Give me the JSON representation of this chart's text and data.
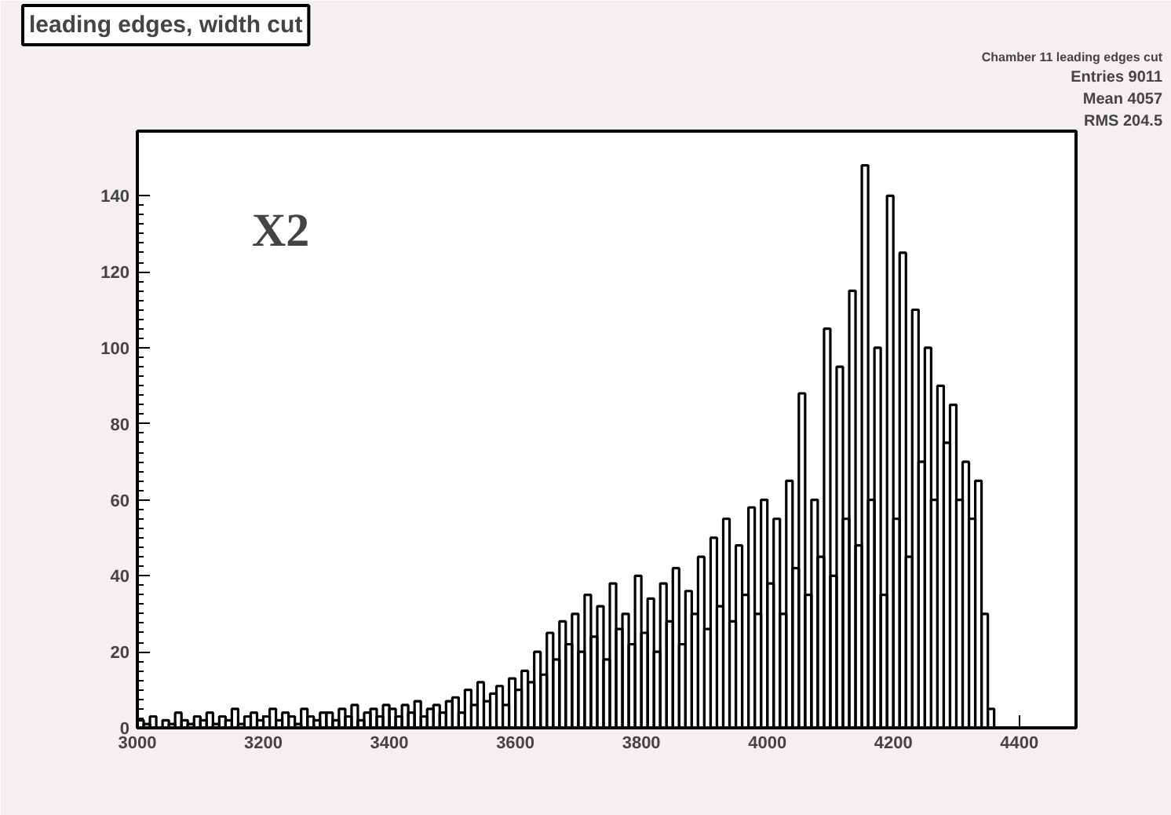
{
  "chart_data": {
    "type": "histogram",
    "title": "leading edges, width cut",
    "annotations": [
      "X2",
      "Chamber 11 leading edges cut",
      "Entries 9011",
      "Mean 4057",
      "RMS 204.5"
    ],
    "bins": [
      3000,
      3010,
      3020,
      3030,
      3040,
      3050,
      3060,
      3070,
      3080,
      3090,
      3100,
      3110,
      3120,
      3130,
      3140,
      3150,
      3160,
      3170,
      3180,
      3190,
      3200,
      3210,
      3220,
      3230,
      3240,
      3250,
      3260,
      3270,
      3280,
      3290,
      3300,
      3310,
      3320,
      3330,
      3340,
      3350,
      3360,
      3370,
      3380,
      3390,
      3400,
      3410,
      3420,
      3430,
      3440,
      3450,
      3460,
      3470,
      3480,
      3490,
      3500,
      3510,
      3520,
      3530,
      3540,
      3550,
      3560,
      3570,
      3580,
      3590,
      3600,
      3610,
      3620,
      3630,
      3640,
      3650,
      3660,
      3670,
      3680,
      3690,
      3700,
      3710,
      3720,
      3730,
      3740,
      3750,
      3760,
      3770,
      3780,
      3790,
      3800,
      3810,
      3820,
      3830,
      3840,
      3850,
      3860,
      3870,
      3880,
      3890,
      3900,
      3910,
      3920,
      3930,
      3940,
      3950,
      3960,
      3970,
      3980,
      3990,
      4000,
      4010,
      4020,
      4030,
      4040,
      4050,
      4060,
      4070,
      4080,
      4090,
      4100,
      4110,
      4120,
      4130,
      4140,
      4150,
      4160,
      4170,
      4180,
      4190,
      4200,
      4210,
      4220,
      4230,
      4240,
      4250,
      4260,
      4270,
      4280,
      4290,
      4300,
      4310,
      4320,
      4330,
      4340,
      4350,
      4360,
      4370,
      4380,
      4390,
      4400,
      4410,
      4420,
      4430,
      4440,
      4450,
      4460,
      4470,
      4480,
      4490
    ],
    "values": [
      2,
      1,
      3,
      0,
      2,
      1,
      4,
      2,
      1,
      3,
      2,
      4,
      1,
      3,
      2,
      5,
      1,
      3,
      4,
      2,
      3,
      5,
      2,
      4,
      3,
      1,
      5,
      3,
      2,
      4,
      4,
      2,
      5,
      3,
      6,
      2,
      4,
      5,
      3,
      6,
      5,
      3,
      6,
      4,
      7,
      3,
      5,
      6,
      4,
      7,
      8,
      4,
      10,
      6,
      12,
      7,
      9,
      11,
      6,
      13,
      10,
      15,
      12,
      20,
      14,
      25,
      18,
      28,
      22,
      30,
      20,
      35,
      24,
      32,
      18,
      38,
      26,
      30,
      22,
      40,
      25,
      34,
      20,
      38,
      28,
      42,
      22,
      36,
      30,
      45,
      26,
      50,
      32,
      55,
      28,
      48,
      35,
      58,
      30,
      60,
      38,
      55,
      30,
      65,
      42,
      88,
      35,
      60,
      45,
      105,
      40,
      95,
      55,
      115,
      48,
      148,
      60,
      100,
      35,
      140,
      55,
      125,
      45,
      110,
      70,
      100,
      60,
      90,
      75,
      85,
      60,
      70,
      55,
      65,
      30,
      5,
      0,
      0,
      0,
      0,
      0,
      0,
      0,
      0,
      0,
      0,
      0,
      0,
      0
    ],
    "color": "#000000",
    "xlim": [
      3000,
      4490
    ],
    "ylim": [
      0,
      157
    ],
    "xticks": [
      3000,
      3200,
      3400,
      3600,
      3800,
      4000,
      4200,
      4400
    ],
    "yticks": [
      0,
      20,
      40,
      60,
      80,
      100,
      120,
      140
    ],
    "grid": false
  }
}
